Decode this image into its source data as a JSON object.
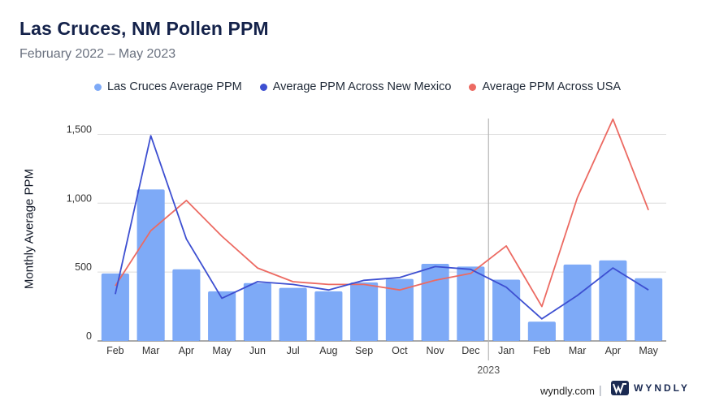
{
  "chart_data": {
    "type": "bar",
    "title": "Las Cruces, NM Pollen PPM",
    "subtitle": "February 2022 – May 2023",
    "ylabel": "Monthly Average PPM",
    "xlabel": "",
    "ylim": [
      0,
      1500
    ],
    "yticks": [
      {
        "value": 0,
        "label": "0"
      },
      {
        "value": 500,
        "label": "500"
      },
      {
        "value": 1000,
        "label": "1,000"
      },
      {
        "value": 1500,
        "label": "1,500"
      }
    ],
    "categories": [
      "Feb",
      "Mar",
      "Apr",
      "May",
      "Jun",
      "Jul",
      "Aug",
      "Sep",
      "Oct",
      "Nov",
      "Dec",
      "Jan",
      "Feb",
      "Mar",
      "Apr",
      "May"
    ],
    "year_divider": {
      "after_index": 10,
      "label": "2023"
    },
    "series": [
      {
        "name": "Las Cruces Average PPM",
        "type": "bar",
        "color": "#7eaaf7",
        "values": [
          490,
          1100,
          520,
          360,
          420,
          385,
          360,
          425,
          450,
          560,
          540,
          445,
          140,
          555,
          585,
          455
        ]
      },
      {
        "name": "Average PPM Across New Mexico",
        "type": "line",
        "color": "#3d4fd1",
        "values": [
          340,
          1490,
          740,
          310,
          430,
          410,
          370,
          440,
          460,
          540,
          520,
          390,
          160,
          330,
          530,
          370
        ]
      },
      {
        "name": "Average PPM Across USA",
        "type": "line",
        "color": "#ec6a62",
        "values": [
          400,
          800,
          1020,
          760,
          530,
          430,
          410,
          410,
          370,
          440,
          490,
          690,
          250,
          1040,
          1610,
          950
        ]
      }
    ]
  },
  "footer": {
    "site": "wyndly.com",
    "separator": "|",
    "brand": "WYNDLY"
  }
}
